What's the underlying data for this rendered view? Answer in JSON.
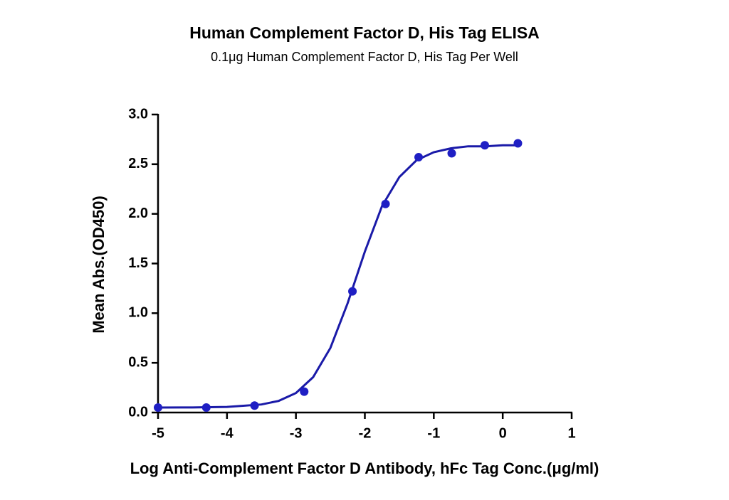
{
  "chart_data": {
    "type": "scatter",
    "title": "Human Complement Factor D, His Tag ELISA",
    "subtitle": "0.1μg Human Complement Factor D, His Tag Per Well",
    "x_label": "Log Anti-Complement Factor D  Antibody, hFc Tag Conc.(μg/ml)",
    "y_label": "Mean Abs.(OD450)",
    "x": [
      -5,
      -4.3,
      -3.6,
      -2.88,
      -2.18,
      -1.7,
      -1.22,
      -0.74,
      -0.26,
      0.22
    ],
    "values": [
      0.05,
      0.05,
      0.07,
      0.21,
      1.22,
      2.1,
      2.57,
      2.61,
      2.69,
      2.71
    ],
    "color": "#1f1fc4",
    "fit": {
      "x": [
        -5,
        -4.5,
        -4,
        -3.5,
        -3.25,
        -3,
        -2.75,
        -2.5,
        -2.25,
        -2,
        -1.75,
        -1.5,
        -1.25,
        -1,
        -0.75,
        -0.5,
        -0.25,
        0,
        0.22
      ],
      "values": [
        0.05,
        0.051,
        0.056,
        0.081,
        0.117,
        0.196,
        0.356,
        0.65,
        1.1,
        1.62,
        2.08,
        2.37,
        2.54,
        2.62,
        2.66,
        2.68,
        2.68,
        2.69,
        2.69
      ],
      "color": "#1a1aa8"
    },
    "xlim": [
      -5,
      1
    ],
    "xticks": [
      -5,
      -4,
      -3,
      -2,
      -1,
      0,
      1
    ],
    "ylim": [
      0,
      3
    ],
    "yticks": [
      {
        "value": 0,
        "label": "0.0"
      },
      0.5,
      {
        "value": 1,
        "label": "1.0"
      },
      1.5,
      {
        "value": 2,
        "label": "2.0"
      },
      2.5,
      {
        "value": 3,
        "label": "3.0"
      }
    ]
  }
}
